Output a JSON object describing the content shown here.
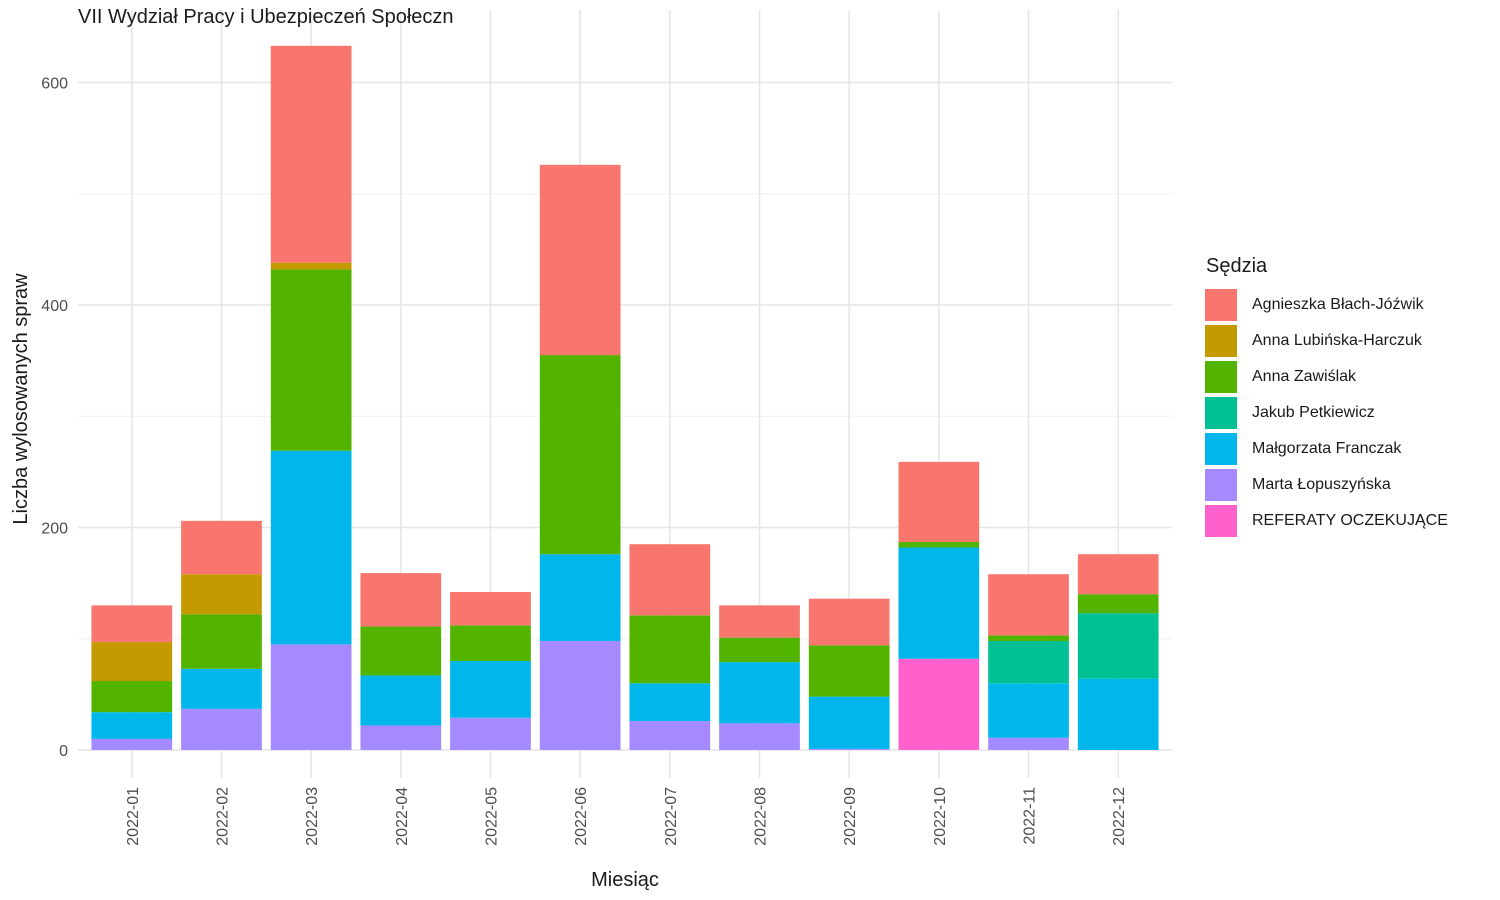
{
  "chart_data": {
    "type": "bar",
    "stacked": true,
    "title": "VII Wydział Pracy i Ubezpieczeń Społeczn",
    "xlabel": "Miesiąc",
    "ylabel": "Liczba wylosowanych spraw",
    "ylim": [
      -25,
      645
    ],
    "yticks": [
      0,
      200,
      400,
      600
    ],
    "grid": true,
    "legend_title": "Sędzia",
    "legend_position": "right",
    "categories": [
      "2022-01",
      "2022-02",
      "2022-03",
      "2022-04",
      "2022-05",
      "2022-06",
      "2022-07",
      "2022-08",
      "2022-09",
      "2022-10",
      "2022-11",
      "2022-12"
    ],
    "series": [
      {
        "name": "REFERATY OCZEKUJĄCE",
        "color": "#FF61CC",
        "values": [
          0,
          0,
          0,
          0,
          0,
          0,
          0,
          0,
          0,
          82,
          0,
          0
        ]
      },
      {
        "name": "Marta Łopuszyńska",
        "color": "#A58AFF",
        "values": [
          10,
          37,
          95,
          22,
          29,
          98,
          26,
          24,
          1,
          0,
          11,
          0
        ]
      },
      {
        "name": "Małgorzata Franczak",
        "color": "#00B6EB",
        "values": [
          24,
          36,
          174,
          45,
          51,
          78,
          34,
          55,
          47,
          100,
          49,
          64
        ]
      },
      {
        "name": "Jakub Petkiewicz",
        "color": "#00C094",
        "values": [
          0,
          0,
          0,
          0,
          0,
          0,
          0,
          0,
          0,
          0,
          38,
          59
        ]
      },
      {
        "name": "Anna Zawiślak",
        "color": "#53B400",
        "values": [
          28,
          49,
          163,
          44,
          32,
          179,
          61,
          22,
          46,
          5,
          5,
          17
        ]
      },
      {
        "name": "Anna Lubińska-Harczuk",
        "color": "#C49A00",
        "values": [
          35,
          36,
          6,
          0,
          0,
          0,
          0,
          0,
          0,
          0,
          0,
          0
        ]
      },
      {
        "name": "Agnieszka Błach-Jóźwik",
        "color": "#F8766D",
        "values": [
          33,
          48,
          195,
          48,
          30,
          171,
          64,
          29,
          42,
          72,
          55,
          36
        ]
      }
    ],
    "legend_order": [
      "Agnieszka Błach-Jóźwik",
      "Anna Lubińska-Harczuk",
      "Anna Zawiślak",
      "Jakub Petkiewicz",
      "Małgorzata Franczak",
      "Marta Łopuszyńska",
      "REFERATY OCZEKUJĄCE"
    ]
  }
}
